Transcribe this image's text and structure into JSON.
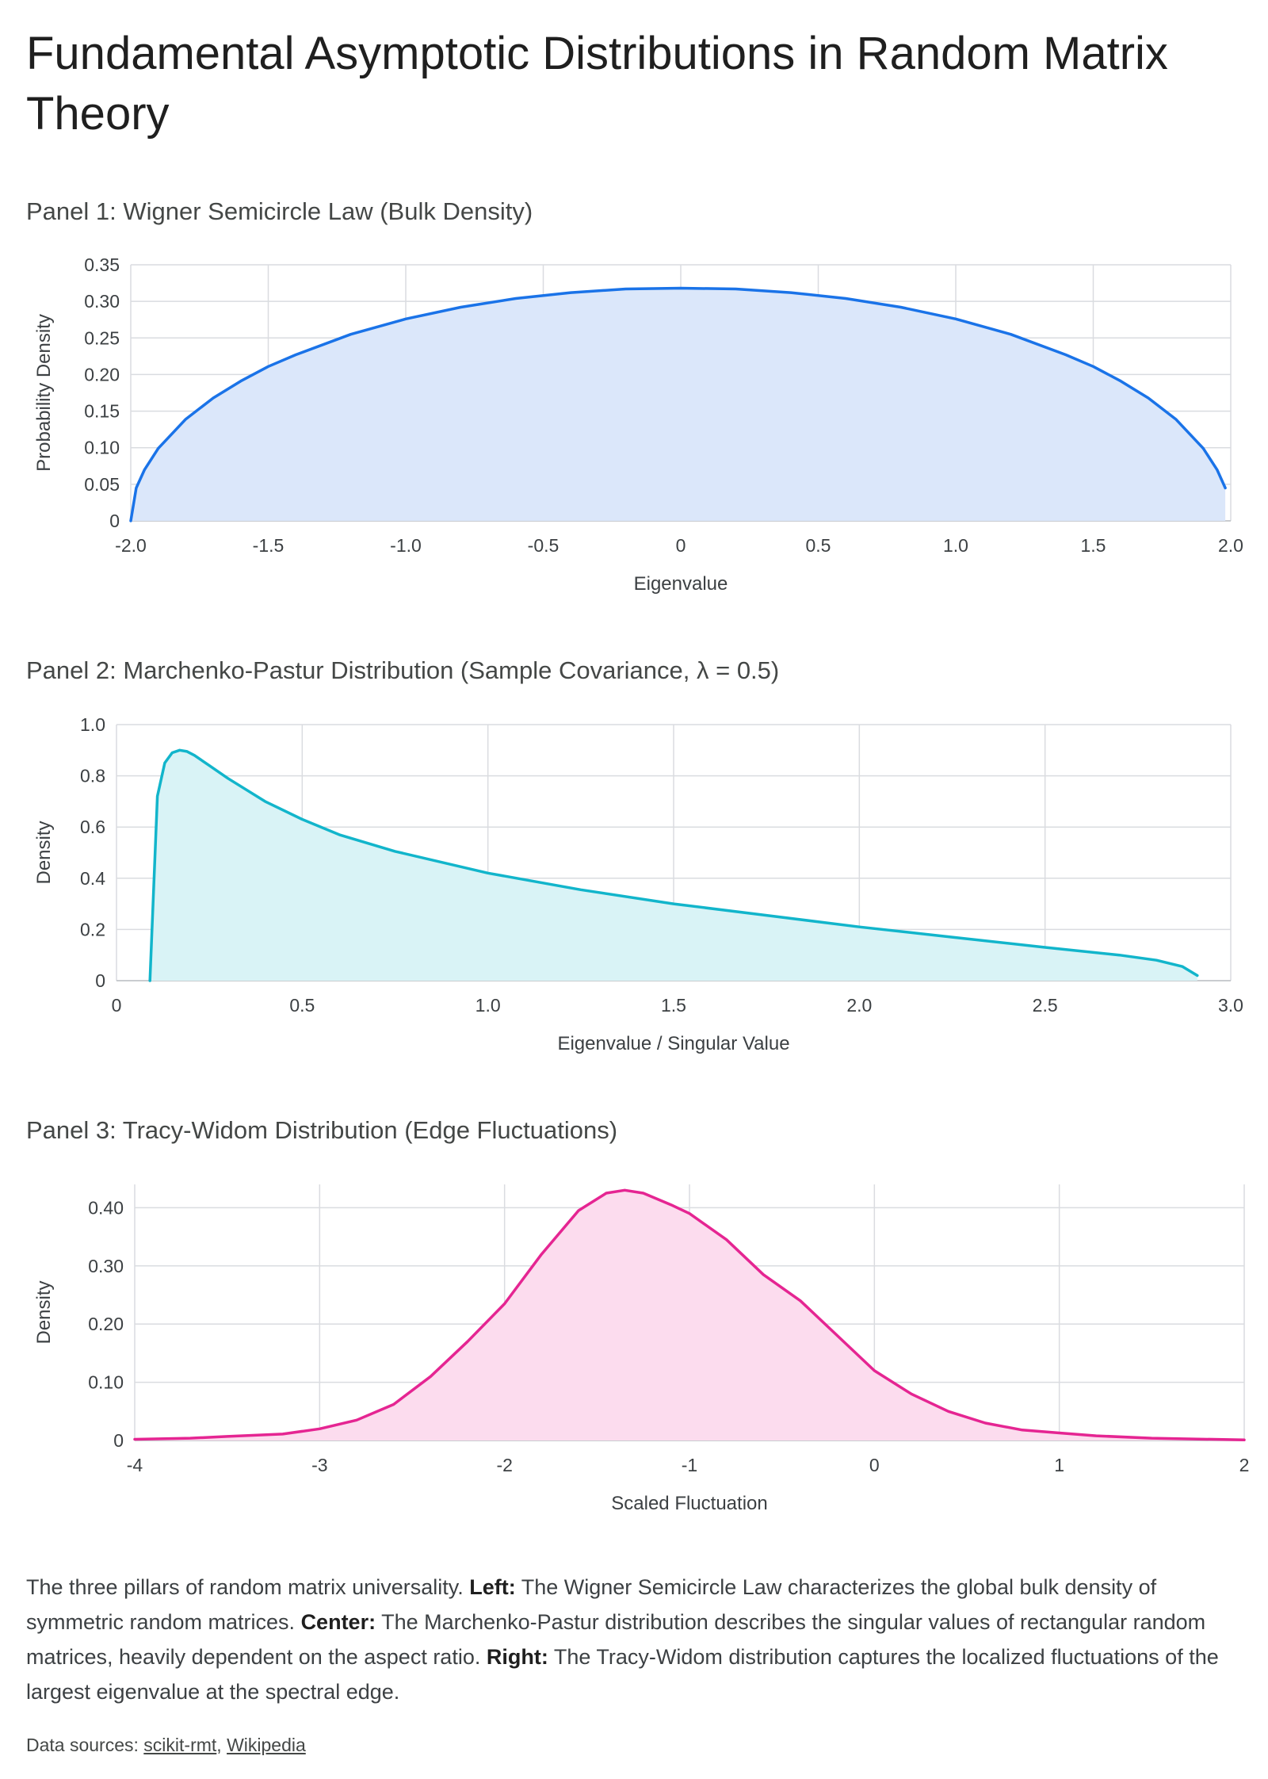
{
  "page": {
    "title": "Fundamental Asymptotic Distributions in Random Matrix Theory"
  },
  "caption": {
    "intro": "The three pillars of random matrix universality. ",
    "left_label": "Left:",
    "left_text": " The Wigner Semicircle Law characterizes the global bulk density of symmetric random matrices. ",
    "center_label": "Center:",
    "center_text": " The Marchenko-Pastur distribution describes the singular values of rectangular random matrices, heavily dependent on the aspect ratio. ",
    "right_label": "Right:",
    "right_text": " The Tracy-Widom distribution captures the localized fluctuations of the largest eigenvalue at the spectral edge."
  },
  "sources": {
    "prefix": "Data sources: ",
    "link1": "scikit-rmt",
    "separator": ", ",
    "link2": "Wikipedia"
  },
  "chart_data": [
    {
      "type": "area",
      "title": "Panel 1: Wigner Semicircle Law (Bulk Density)",
      "xlabel": "Eigenvalue",
      "ylabel": "Probability Density",
      "xlim": [
        -2.0,
        2.0
      ],
      "ylim": [
        0,
        0.35
      ],
      "xticks": [
        "-2.0",
        "-1.5",
        "-1.0",
        "-0.5",
        "0",
        "0.5",
        "1.0",
        "1.5",
        "2.0"
      ],
      "yticks": [
        "0",
        "0.05",
        "0.10",
        "0.15",
        "0.20",
        "0.25",
        "0.30",
        "0.35"
      ],
      "grid": true,
      "color": "#1a73e8",
      "fill": "#dbe7fa",
      "x": [
        -2.0,
        -1.98,
        -1.95,
        -1.9,
        -1.8,
        -1.7,
        -1.6,
        -1.5,
        -1.4,
        -1.2,
        -1.0,
        -0.8,
        -0.6,
        -0.4,
        -0.2,
        0.0,
        0.2,
        0.4,
        0.6,
        0.8,
        1.0,
        1.2,
        1.4,
        1.5,
        1.6,
        1.7,
        1.8,
        1.9,
        1.95,
        1.98
      ],
      "y": [
        0.0,
        0.045,
        0.07,
        0.099,
        0.139,
        0.168,
        0.191,
        0.211,
        0.227,
        0.255,
        0.276,
        0.292,
        0.304,
        0.312,
        0.317,
        0.318,
        0.317,
        0.312,
        0.304,
        0.292,
        0.276,
        0.255,
        0.227,
        0.211,
        0.191,
        0.168,
        0.139,
        0.099,
        0.07,
        0.045
      ]
    },
    {
      "type": "area",
      "title": "Panel 2: Marchenko-Pastur Distribution (Sample Covariance, λ = 0.5)",
      "xlabel": "Eigenvalue / Singular Value",
      "ylabel": "Density",
      "xlim": [
        0,
        3.0
      ],
      "ylim": [
        0,
        1.0
      ],
      "xticks": [
        "0",
        "0.5",
        "1.0",
        "1.5",
        "2.0",
        "2.5",
        "3.0"
      ],
      "yticks": [
        "0",
        "0.2",
        "0.4",
        "0.6",
        "0.8",
        "1.0"
      ],
      "grid": true,
      "color": "#12b5cb",
      "fill": "#d9f3f6",
      "x": [
        0.09,
        0.11,
        0.13,
        0.15,
        0.17,
        0.19,
        0.21,
        0.25,
        0.3,
        0.4,
        0.5,
        0.6,
        0.75,
        1.0,
        1.25,
        1.5,
        1.75,
        2.0,
        2.25,
        2.5,
        2.7,
        2.8,
        2.87,
        2.91
      ],
      "y": [
        0.0,
        0.72,
        0.85,
        0.89,
        0.9,
        0.895,
        0.88,
        0.84,
        0.79,
        0.7,
        0.63,
        0.57,
        0.505,
        0.42,
        0.355,
        0.3,
        0.255,
        0.21,
        0.17,
        0.13,
        0.1,
        0.08,
        0.055,
        0.02
      ]
    },
    {
      "type": "area",
      "title": "Panel 3: Tracy-Widom Distribution (Edge Fluctuations)",
      "xlabel": "Scaled Fluctuation",
      "ylabel": "Density",
      "xlim": [
        -4,
        2
      ],
      "ylim": [
        0,
        0.44
      ],
      "xticks": [
        "-4",
        "-3",
        "-2",
        "-1",
        "0",
        "1",
        "2"
      ],
      "yticks": [
        "0",
        "0.10",
        "0.20",
        "0.30",
        "0.40"
      ],
      "ytick_values": [
        0,
        0.1,
        0.2,
        0.3,
        0.4
      ],
      "grid": true,
      "color": "#e52592",
      "fill": "#fcdcee",
      "x": [
        -4.0,
        -3.7,
        -3.5,
        -3.2,
        -3.0,
        -2.8,
        -2.6,
        -2.4,
        -2.2,
        -2.0,
        -1.8,
        -1.6,
        -1.45,
        -1.35,
        -1.25,
        -1.1,
        -1.0,
        -0.8,
        -0.6,
        -0.4,
        -0.2,
        0.0,
        0.2,
        0.4,
        0.6,
        0.8,
        1.0,
        1.2,
        1.5,
        2.0
      ],
      "y": [
        0.002,
        0.004,
        0.007,
        0.011,
        0.02,
        0.035,
        0.062,
        0.11,
        0.17,
        0.235,
        0.32,
        0.395,
        0.425,
        0.43,
        0.425,
        0.405,
        0.39,
        0.345,
        0.285,
        0.24,
        0.18,
        0.12,
        0.08,
        0.05,
        0.03,
        0.018,
        0.013,
        0.008,
        0.004,
        0.001
      ]
    }
  ]
}
